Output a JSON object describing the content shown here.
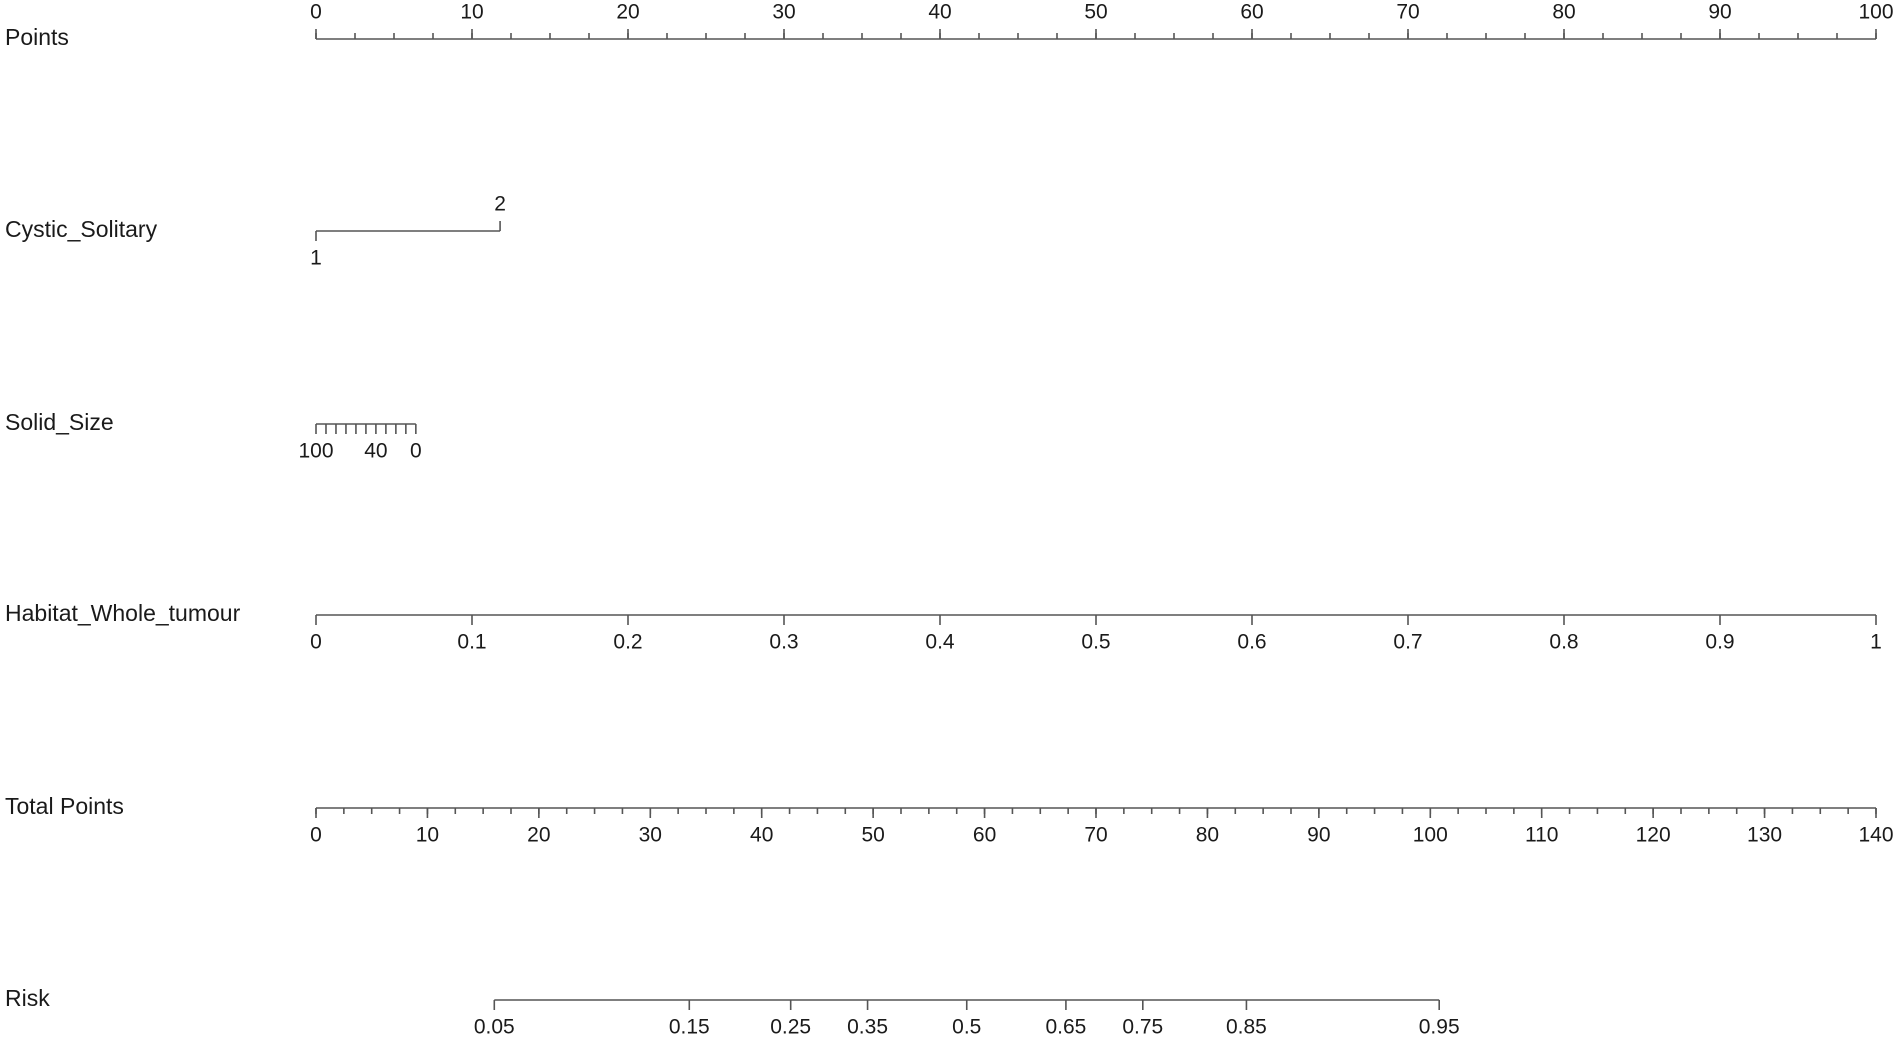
{
  "chart_data": {
    "type": "nomogram",
    "axes": [
      {
        "label": "Points",
        "lim": [
          0,
          100
        ],
        "pos": [
          0,
          100
        ],
        "ticks": [
          0,
          10,
          20,
          30,
          40,
          50,
          60,
          70,
          80,
          90,
          100
        ],
        "minor_step": 2.5,
        "label_side": "top"
      },
      {
        "label": "Cystic_Solitary",
        "categories": [
          "1",
          "2"
        ],
        "positions": [
          0,
          11.8
        ]
      },
      {
        "label": "Solid_Size",
        "lim": [
          100,
          0
        ],
        "pos": [
          0,
          6.4
        ],
        "ticks": [
          100,
          90,
          80,
          70,
          60,
          50,
          40,
          30,
          20,
          10,
          0
        ],
        "tick_labels": [
          "100",
          null,
          null,
          null,
          null,
          null,
          "40",
          null,
          null,
          null,
          "0"
        ],
        "label_side": "bottom"
      },
      {
        "label": "Habitat_Whole_tumour",
        "lim": [
          0,
          1
        ],
        "pos": [
          0,
          100
        ],
        "ticks": [
          0,
          0.1,
          0.2,
          0.3,
          0.4,
          0.5,
          0.6,
          0.7,
          0.8,
          0.9,
          1
        ],
        "label_side": "bottom"
      },
      {
        "label": "Total Points",
        "lim": [
          0,
          140
        ],
        "pos": [
          0,
          100
        ],
        "ticks": [
          0,
          10,
          20,
          30,
          40,
          50,
          60,
          70,
          80,
          90,
          100,
          110,
          120,
          130,
          140
        ],
        "minor_step": 2.5,
        "label_side": "bottom"
      },
      {
        "label": "Risk",
        "ticks": [
          0.05,
          0.15,
          0.25,
          0.35,
          0.5,
          0.65,
          0.75,
          0.85,
          0.95
        ],
        "total_points": [
          16.0,
          33.5,
          42.6,
          49.5,
          58.4,
          67.3,
          74.2,
          83.5,
          100.8
        ],
        "label_side": "bottom"
      }
    ]
  }
}
